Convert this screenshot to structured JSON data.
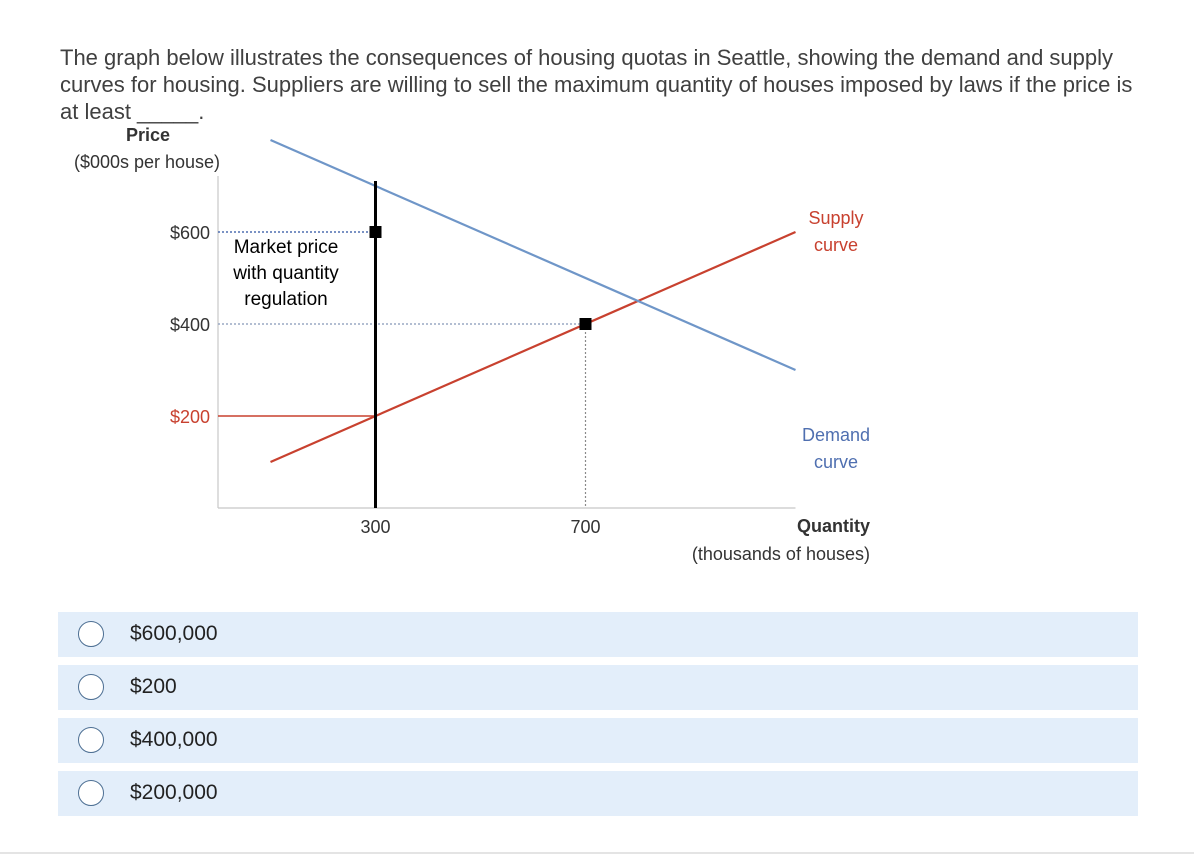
{
  "question": {
    "text": "The graph below illustrates the consequences of housing quotas in Seattle, showing the demand and supply curves for housing. Suppliers are willing to sell the maximum quantity of houses imposed by laws if the price is at least _____."
  },
  "chart_data": {
    "type": "line",
    "ylabel_line1": "Price",
    "ylabel_line2": "($000s per house)",
    "xlabel_line1": "Quantity",
    "xlabel_line2": "(thousands of houses)",
    "x_ticks": [
      300,
      700
    ],
    "x_tick_labels": [
      "300",
      "700"
    ],
    "y_ticks": [
      200,
      400,
      600
    ],
    "y_tick_labels": [
      "$200",
      "$400",
      "$600"
    ],
    "xlim": [
      0,
      1100
    ],
    "ylim": [
      0,
      700
    ],
    "series": [
      {
        "name": "Supply curve",
        "name_line1": "Supply",
        "name_line2": "curve",
        "color": "#c8412f",
        "x": [
          100,
          1100
        ],
        "y": [
          100,
          600
        ]
      },
      {
        "name": "Demand curve",
        "name_line1": "Demand",
        "name_line2": "curve",
        "color": "#6f96c8",
        "x": [
          100,
          1100
        ],
        "y": [
          800,
          300
        ]
      }
    ],
    "quota_quantity": 300,
    "markers": [
      {
        "x": 300,
        "y": 600
      },
      {
        "x": 700,
        "y": 400
      }
    ],
    "annotation": [
      "Market price",
      "with quantity",
      "regulation"
    ],
    "grid": false
  },
  "options": [
    {
      "label": "$600,000"
    },
    {
      "label": "$200"
    },
    {
      "label": "$400,000"
    },
    {
      "label": "$200,000"
    }
  ]
}
